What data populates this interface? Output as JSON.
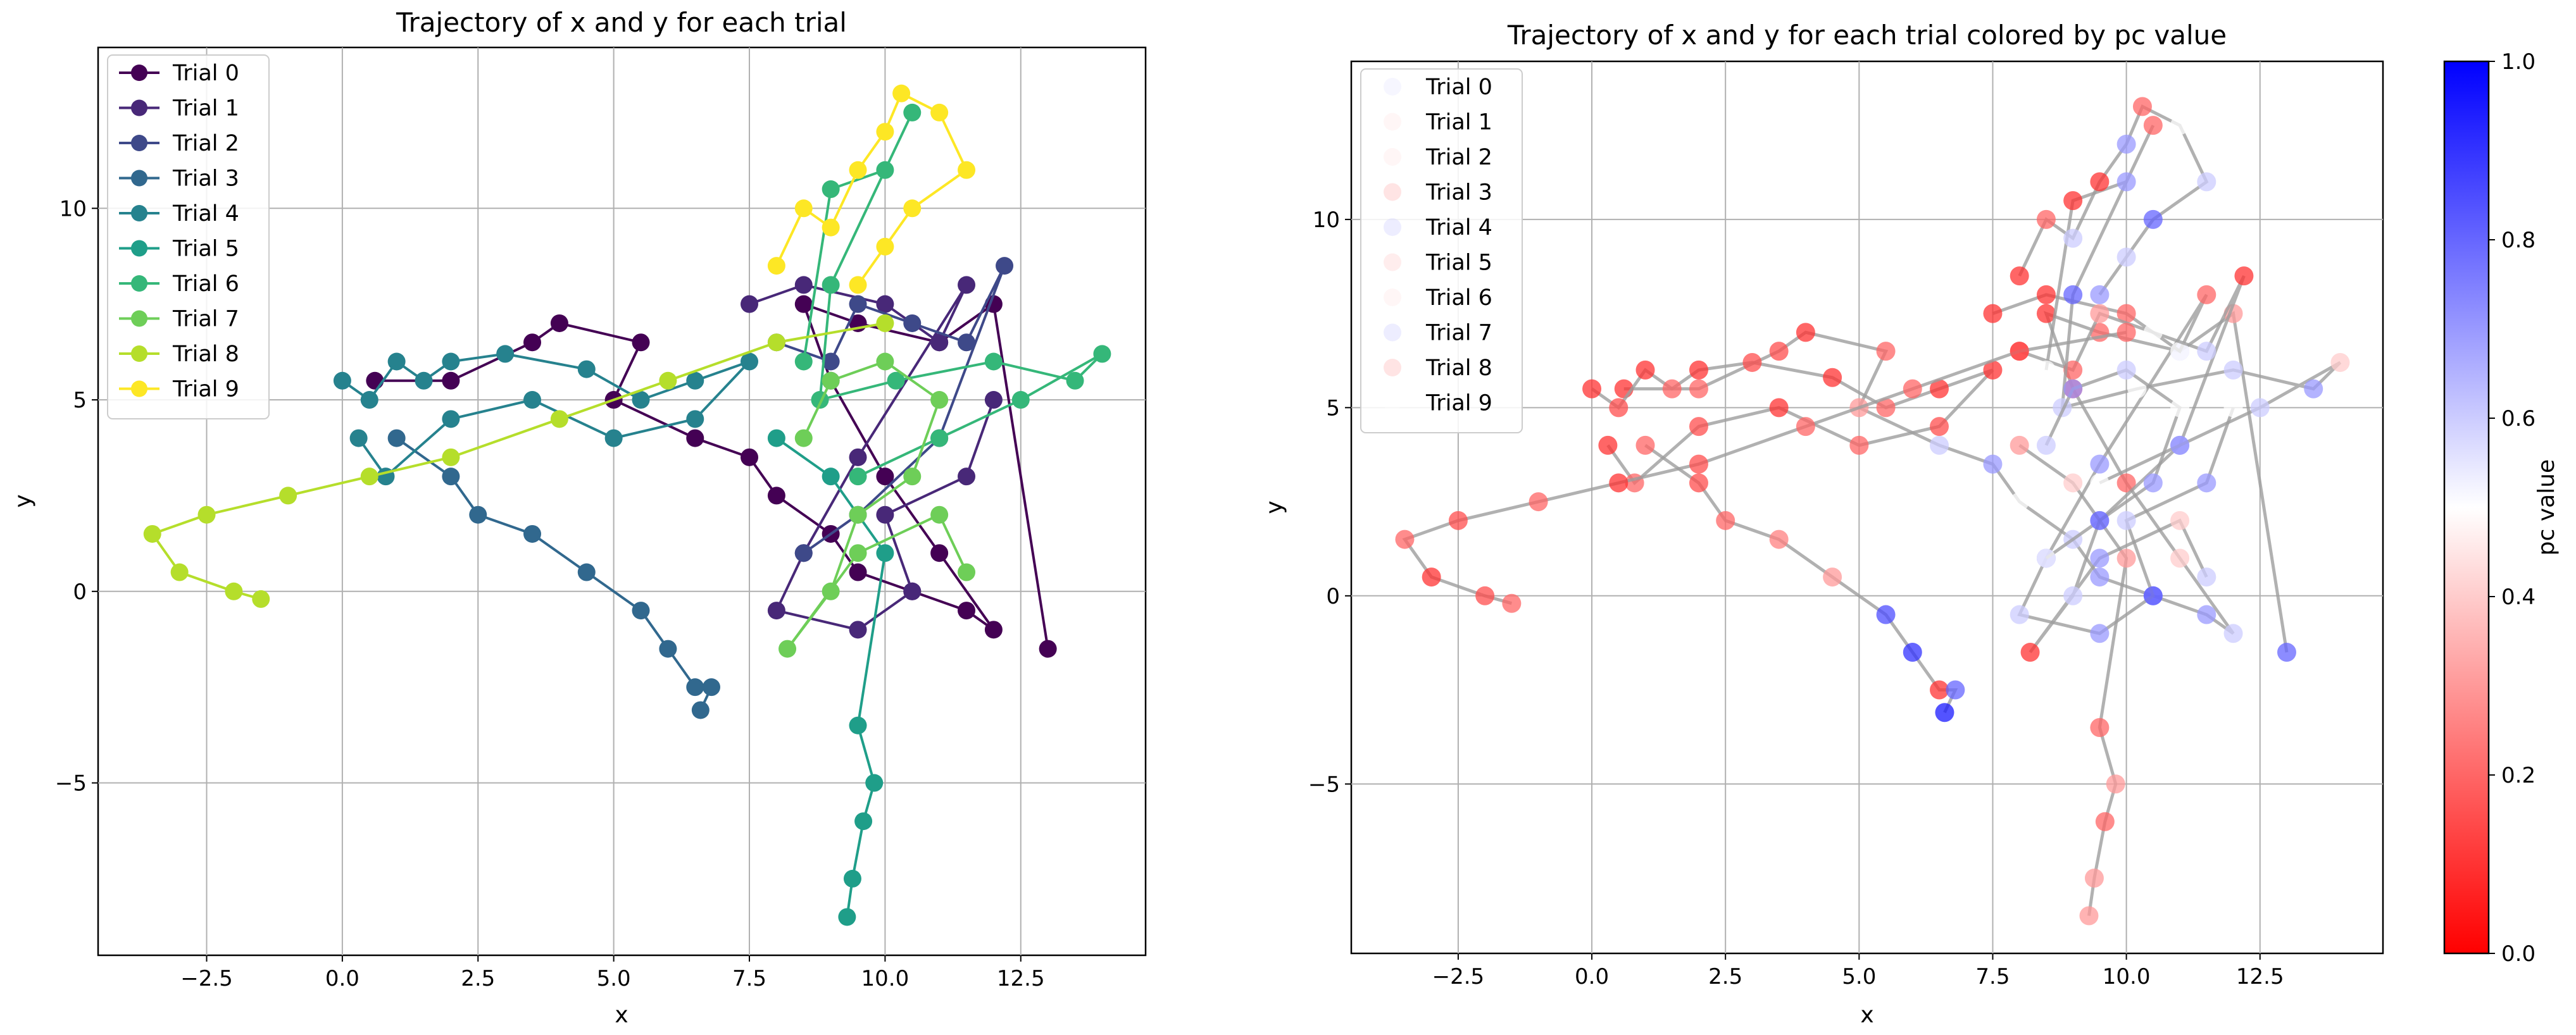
{
  "chart_data": [
    {
      "type": "line",
      "title": "Trajectory of x and y for each trial",
      "xlabel": "x",
      "ylabel": "y",
      "xlim": [
        -4.5,
        14.8
      ],
      "ylim": [
        -9.5,
        14.2
      ],
      "xticks": [
        -2.5,
        0.0,
        2.5,
        5.0,
        7.5,
        10.0,
        12.5
      ],
      "xtick_labels": [
        "−2.5",
        "0.0",
        "2.5",
        "5.0",
        "7.5",
        "10.0",
        "12.5"
      ],
      "yticks": [
        -5,
        0,
        5,
        10
      ],
      "ytick_labels": [
        "−5",
        "0",
        "5",
        "10"
      ],
      "grid": true,
      "legend_position": "top-left",
      "colormap": "viridis",
      "series": [
        {
          "name": "Trial 0",
          "color": "#440154",
          "x": [
            0.6,
            2.0,
            3.5,
            4.0,
            5.5,
            5.0,
            6.5,
            7.5,
            8.0,
            9.0,
            9.5,
            10.5,
            11.5,
            12.0,
            11.0,
            10.0,
            9.0,
            8.5,
            9.5,
            11.0,
            12.0,
            13.0
          ],
          "y": [
            5.5,
            5.5,
            6.5,
            7.0,
            6.5,
            5.0,
            4.0,
            3.5,
            2.5,
            1.5,
            0.5,
            0.0,
            -0.5,
            -1.0,
            1.0,
            3.0,
            5.5,
            7.5,
            7.0,
            6.5,
            7.5,
            -1.5
          ]
        },
        {
          "name": "Trial 1",
          "color": "#482878",
          "x": [
            7.5,
            8.5,
            10.0,
            11.0,
            11.5,
            9.5,
            8.5,
            8.0,
            9.5,
            10.5,
            10.0,
            11.5,
            12.0
          ],
          "y": [
            7.5,
            8.0,
            7.5,
            6.5,
            8.0,
            3.5,
            1.0,
            -0.5,
            -1.0,
            0.0,
            2.0,
            3.0,
            5.0
          ]
        },
        {
          "name": "Trial 2",
          "color": "#3e4989",
          "x": [
            8.0,
            9.0,
            9.5,
            10.5,
            11.5,
            12.2,
            11.0,
            9.5,
            8.5
          ],
          "y": [
            6.5,
            6.0,
            7.5,
            7.0,
            6.5,
            8.5,
            4.0,
            2.0,
            1.0
          ]
        },
        {
          "name": "Trial 3",
          "color": "#31688e",
          "x": [
            1.0,
            2.0,
            2.5,
            3.5,
            4.5,
            5.5,
            6.0,
            6.5,
            6.8,
            6.6
          ],
          "y": [
            4.0,
            3.0,
            2.0,
            1.5,
            0.5,
            -0.5,
            -1.5,
            -2.5,
            -2.5,
            -3.1
          ]
        },
        {
          "name": "Trial 4",
          "color": "#26828e",
          "x": [
            0.0,
            0.5,
            1.0,
            1.5,
            2.0,
            3.0,
            4.5,
            5.5,
            6.5,
            7.5,
            6.5,
            5.0,
            3.5,
            2.0,
            0.8,
            0.3
          ],
          "y": [
            5.5,
            5.0,
            6.0,
            5.5,
            6.0,
            6.2,
            5.8,
            5.0,
            5.5,
            6.0,
            4.5,
            4.0,
            5.0,
            4.5,
            3.0,
            4.0
          ]
        },
        {
          "name": "Trial 5",
          "color": "#1f9e89",
          "x": [
            8.0,
            9.0,
            10.0,
            9.5,
            9.8,
            9.6,
            9.4,
            9.3
          ],
          "y": [
            4.0,
            3.0,
            1.0,
            -3.5,
            -5.0,
            -6.0,
            -7.5,
            -8.5
          ]
        },
        {
          "name": "Trial 6",
          "color": "#35b779",
          "x": [
            8.5,
            9.0,
            10.0,
            10.5,
            9.0,
            8.8,
            10.2,
            12.0,
            13.5,
            14.0,
            12.5,
            11.0,
            9.5
          ],
          "y": [
            6.0,
            10.5,
            11.0,
            12.5,
            8.0,
            5.0,
            5.5,
            6.0,
            5.5,
            6.2,
            5.0,
            4.0,
            3.0
          ]
        },
        {
          "name": "Trial 7",
          "color": "#6ece58",
          "x": [
            8.5,
            9.0,
            10.0,
            11.0,
            10.5,
            9.5,
            9.0,
            8.2,
            9.5,
            11.0,
            11.5
          ],
          "y": [
            4.0,
            5.5,
            6.0,
            5.0,
            3.0,
            2.0,
            0.0,
            -1.5,
            1.0,
            2.0,
            0.5
          ]
        },
        {
          "name": "Trial 8",
          "color": "#b5de2b",
          "x": [
            10.0,
            8.0,
            6.0,
            4.0,
            2.0,
            0.5,
            -1.0,
            -2.5,
            -3.5,
            -3.0,
            -2.0,
            -1.5
          ],
          "y": [
            7.0,
            6.5,
            5.5,
            4.5,
            3.5,
            3.0,
            2.5,
            2.0,
            1.5,
            0.5,
            0.0,
            -0.2
          ]
        },
        {
          "name": "Trial 9",
          "color": "#fde725",
          "x": [
            8.0,
            8.5,
            9.0,
            9.5,
            10.0,
            10.3,
            11.0,
            11.5,
            10.5,
            10.0,
            9.5
          ],
          "y": [
            8.5,
            10.0,
            9.5,
            11.0,
            12.0,
            13.0,
            12.5,
            11.0,
            10.0,
            9.0,
            8.0
          ]
        }
      ]
    },
    {
      "type": "scatter",
      "title": "Trajectory of x and y for each trial colored by pc value",
      "xlabel": "x",
      "ylabel": "y",
      "xlim": [
        -4.5,
        14.8
      ],
      "ylim": [
        -9.5,
        14.2
      ],
      "xticks": [
        -2.5,
        0.0,
        2.5,
        5.0,
        7.5,
        10.0,
        12.5
      ],
      "xtick_labels": [
        "−2.5",
        "0.0",
        "2.5",
        "5.0",
        "7.5",
        "10.0",
        "12.5"
      ],
      "yticks": [
        -5,
        0,
        5,
        10
      ],
      "ytick_labels": [
        "−5",
        "0",
        "5",
        "10"
      ],
      "grid": true,
      "legend_position": "top-left",
      "line_color": "#9e9e9e",
      "colorbar": {
        "label": "pc value",
        "range": [
          0.0,
          1.0
        ],
        "ticks": [
          0.0,
          0.2,
          0.4,
          0.6,
          0.8,
          1.0
        ],
        "tick_labels": [
          "0.0",
          "0.2",
          "0.4",
          "0.6",
          "0.8",
          "1.0"
        ],
        "colors": [
          "#ff0000",
          "#ffffff",
          "#0000ff"
        ]
      },
      "legend_pc": [
        0.55,
        0.45,
        0.45,
        0.35,
        0.6,
        0.4,
        0.45,
        0.6,
        0.35,
        0.5
      ],
      "series_pc": [
        [
          0.1,
          0.2,
          0.15,
          0.1,
          0.2,
          0.3,
          0.6,
          0.7,
          0.5,
          0.6,
          0.7,
          0.8,
          0.7,
          0.6,
          0.4,
          0.2,
          0.1,
          0.1,
          0.2,
          0.6,
          0.3,
          0.8
        ],
        [
          0.1,
          0.1,
          0.2,
          0.5,
          0.2,
          0.7,
          0.8,
          0.6,
          0.7,
          0.8,
          0.6,
          0.7,
          0.5
        ],
        [
          0.1,
          0.2,
          0.3,
          0.5,
          0.6,
          0.1,
          0.7,
          0.6,
          0.5
        ],
        [
          0.2,
          0.15,
          0.2,
          0.25,
          0.3,
          0.85,
          0.9,
          0.1,
          0.8,
          0.95
        ],
        [
          0.1,
          0.15,
          0.1,
          0.2,
          0.1,
          0.15,
          0.1,
          0.2,
          0.1,
          0.1,
          0.15,
          0.2,
          0.1,
          0.15,
          0.2,
          0.1
        ],
        [
          0.3,
          0.4,
          0.3,
          0.2,
          0.3,
          0.2,
          0.3,
          0.3
        ],
        [
          0.5,
          0.1,
          0.7,
          0.2,
          0.8,
          0.6,
          0.5,
          0.6,
          0.7,
          0.4,
          0.6,
          0.7,
          0.5
        ],
        [
          0.6,
          0.7,
          0.6,
          0.5,
          0.7,
          0.8,
          0.6,
          0.1,
          0.7,
          0.4,
          0.6
        ],
        [
          0.2,
          0.15,
          0.2,
          0.2,
          0.15,
          0.1,
          0.2,
          0.15,
          0.2,
          0.1,
          0.15,
          0.2
        ],
        [
          0.1,
          0.2,
          0.6,
          0.1,
          0.7,
          0.2,
          0.5,
          0.6,
          0.8,
          0.6,
          0.7
        ]
      ]
    }
  ]
}
